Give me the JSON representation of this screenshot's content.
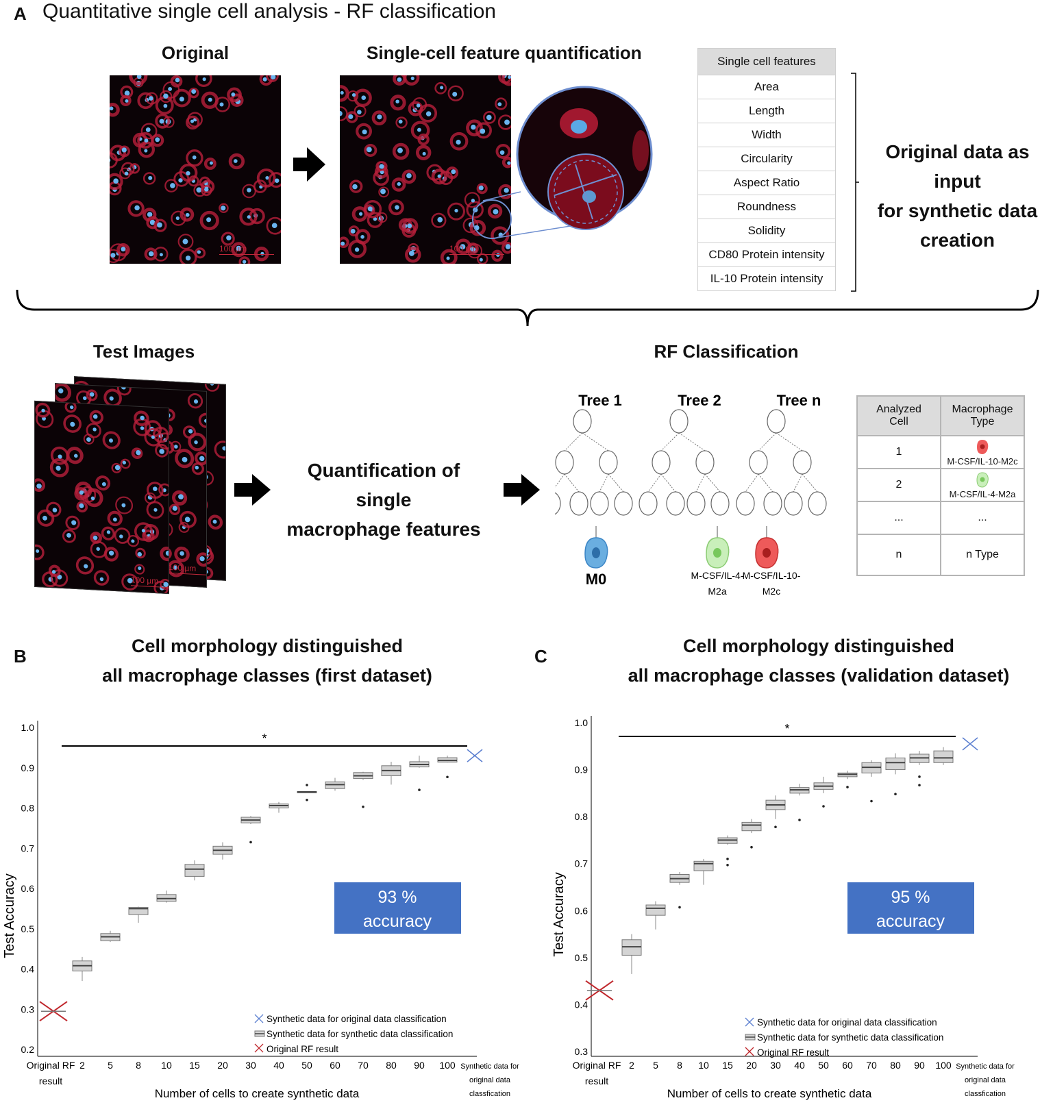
{
  "panelA": {
    "letter": "A",
    "title": "Quantitative single cell analysis - RF classification",
    "original_label": "Original",
    "quant_label": "Single-cell feature quantification",
    "scale_bar": "100 µm",
    "features_header": "Single cell features",
    "features": [
      "Area",
      "Length",
      "Width",
      "Circularity",
      "Aspect Ratio",
      "Roundness",
      "Solidity",
      "CD80 Protein intensity",
      "IL-10 Protein intensity"
    ],
    "input_note_lines": [
      "Original data as input",
      "for synthetic data",
      "creation"
    ],
    "test_images_label": "Test Images",
    "quant_macro_lines": [
      "Quantification of single",
      "macrophage features"
    ],
    "rf_label": "RF Classification",
    "trees": [
      "Tree 1",
      "Tree 2",
      "Tree n"
    ],
    "leaf_labels": {
      "m0": "M0",
      "m2a_1": "M-CSF/IL-4-",
      "m2a_2": "M2a",
      "m2c_1": "M-CSF/IL-10-",
      "m2c_2": "M2c"
    },
    "rf_table": {
      "headers": [
        [
          "Analyzed",
          "Cell"
        ],
        [
          "Macrophage",
          "Type"
        ]
      ],
      "rows": [
        {
          "cell": "1",
          "type": "M-CSF/IL-10-M2c"
        },
        {
          "cell": "2",
          "type": "M-CSF/IL-4-M2a"
        },
        {
          "cell": "...",
          "type": "..."
        },
        {
          "cell": "n",
          "type": "n Type"
        }
      ]
    },
    "colors": {
      "m0": "#6aaee0",
      "m2a": "#b9e6a7",
      "m2c": "#ee5a5a",
      "arrow": "#000000",
      "circle": "#6f8fd0"
    }
  },
  "panelB": {
    "letter": "B",
    "title_lines": [
      "Cell morphology distinguished",
      "all macrophage classes (first dataset)"
    ],
    "accuracy_lines": [
      "93 %",
      "accuracy"
    ]
  },
  "panelC": {
    "letter": "C",
    "title_lines": [
      "Cell morphology distinguished",
      "all macrophage classes (validation dataset)"
    ],
    "accuracy_lines": [
      "95 %",
      "accuracy"
    ]
  },
  "chart_data": [
    {
      "type": "box",
      "ylabel": "Test Accuracy",
      "xlabel": "Number of cells to create synthetic data",
      "ylim": [
        0.2,
        1.0
      ],
      "yticks": [
        "0.2",
        "0.3",
        "0.4",
        "0.5",
        "0.6",
        "0.7",
        "0.8",
        "0.9",
        "1.0"
      ],
      "original_rf": {
        "label_lines": [
          "Original RF",
          "result"
        ],
        "value": 0.295
      },
      "synthetic_original": {
        "label_lines": [
          "Synthetic data for",
          "original data",
          "classfication"
        ],
        "value": 0.93
      },
      "categories": [
        "2",
        "5",
        "8",
        "10",
        "15",
        "20",
        "30",
        "40",
        "50",
        "60",
        "70",
        "80",
        "90",
        "100"
      ],
      "boxes": [
        {
          "min": 0.37,
          "q1": 0.395,
          "median": 0.408,
          "q3": 0.42,
          "max": 0.43,
          "outliers": []
        },
        {
          "min": 0.467,
          "q1": 0.47,
          "median": 0.48,
          "q3": 0.488,
          "max": 0.495,
          "outliers": []
        },
        {
          "min": 0.515,
          "q1": 0.535,
          "median": 0.55,
          "q3": 0.553,
          "max": 0.555,
          "outliers": []
        },
        {
          "min": 0.565,
          "q1": 0.568,
          "median": 0.575,
          "q3": 0.585,
          "max": 0.595,
          "outliers": []
        },
        {
          "min": 0.62,
          "q1": 0.63,
          "median": 0.648,
          "q3": 0.66,
          "max": 0.67,
          "outliers": []
        },
        {
          "min": 0.672,
          "q1": 0.685,
          "median": 0.695,
          "q3": 0.705,
          "max": 0.715,
          "outliers": []
        },
        {
          "min": 0.76,
          "q1": 0.763,
          "median": 0.77,
          "q3": 0.777,
          "max": 0.78,
          "outliers": [
            0.715
          ]
        },
        {
          "min": 0.788,
          "q1": 0.8,
          "median": 0.806,
          "q3": 0.81,
          "max": 0.815,
          "outliers": []
        },
        {
          "min": 0.839,
          "q1": 0.839,
          "median": 0.84,
          "q3": 0.841,
          "max": 0.841,
          "outliers": [
            0.857,
            0.82
          ]
        },
        {
          "min": 0.843,
          "q1": 0.848,
          "median": 0.858,
          "q3": 0.865,
          "max": 0.875,
          "outliers": []
        },
        {
          "min": 0.87,
          "q1": 0.873,
          "median": 0.88,
          "q3": 0.888,
          "max": 0.89,
          "outliers": [
            0.803
          ]
        },
        {
          "min": 0.858,
          "q1": 0.88,
          "median": 0.893,
          "q3": 0.905,
          "max": 0.915,
          "outliers": []
        },
        {
          "min": 0.9,
          "q1": 0.902,
          "median": 0.908,
          "q3": 0.915,
          "max": 0.93,
          "outliers": [
            0.845
          ]
        },
        {
          "min": 0.913,
          "q1": 0.914,
          "median": 0.918,
          "q3": 0.925,
          "max": 0.93,
          "outliers": [
            0.877
          ]
        }
      ],
      "significance": "*",
      "legend": [
        "Synthetic data for original data classification",
        "Synthetic data for synthetic data classification",
        "Original RF result"
      ]
    },
    {
      "type": "box",
      "ylabel": "Test Accuracy",
      "xlabel": "Number of cells to create synthetic data",
      "ylim": [
        0.3,
        1.0
      ],
      "yticks": [
        "0.3",
        "0.4",
        "0.5",
        "0.6",
        "0.7",
        "0.8",
        "0.9",
        "1.0"
      ],
      "original_rf": {
        "label_lines": [
          "Original RF",
          "result"
        ],
        "value": 0.43
      },
      "synthetic_original": {
        "label_lines": [
          "Synthetic data for",
          "original data",
          "classfication"
        ],
        "value": 0.955
      },
      "categories": [
        "2",
        "5",
        "8",
        "10",
        "15",
        "20",
        "30",
        "40",
        "50",
        "60",
        "70",
        "80",
        "90",
        "100"
      ],
      "boxes": [
        {
          "min": 0.465,
          "q1": 0.505,
          "median": 0.523,
          "q3": 0.538,
          "max": 0.55,
          "outliers": []
        },
        {
          "min": 0.56,
          "q1": 0.59,
          "median": 0.605,
          "q3": 0.612,
          "max": 0.62,
          "outliers": []
        },
        {
          "min": 0.655,
          "q1": 0.66,
          "median": 0.668,
          "q3": 0.677,
          "max": 0.682,
          "outliers": [
            0.607
          ]
        },
        {
          "min": 0.655,
          "q1": 0.685,
          "median": 0.7,
          "q3": 0.705,
          "max": 0.71,
          "outliers": []
        },
        {
          "min": 0.74,
          "q1": 0.743,
          "median": 0.75,
          "q3": 0.755,
          "max": 0.76,
          "outliers": [
            0.71,
            0.697
          ]
        },
        {
          "min": 0.765,
          "q1": 0.77,
          "median": 0.782,
          "q3": 0.788,
          "max": 0.795,
          "outliers": [
            0.735
          ]
        },
        {
          "min": 0.795,
          "q1": 0.815,
          "median": 0.825,
          "q3": 0.835,
          "max": 0.845,
          "outliers": [
            0.778
          ]
        },
        {
          "min": 0.845,
          "q1": 0.85,
          "median": 0.857,
          "q3": 0.862,
          "max": 0.87,
          "outliers": [
            0.793
          ]
        },
        {
          "min": 0.85,
          "q1": 0.858,
          "median": 0.865,
          "q3": 0.872,
          "max": 0.885,
          "outliers": [
            0.822
          ]
        },
        {
          "min": 0.88,
          "q1": 0.885,
          "median": 0.89,
          "q3": 0.893,
          "max": 0.898,
          "outliers": [
            0.863
          ]
        },
        {
          "min": 0.885,
          "q1": 0.893,
          "median": 0.905,
          "q3": 0.915,
          "max": 0.92,
          "outliers": [
            0.833
          ]
        },
        {
          "min": 0.89,
          "q1": 0.9,
          "median": 0.915,
          "q3": 0.925,
          "max": 0.935,
          "outliers": [
            0.848
          ]
        },
        {
          "min": 0.91,
          "q1": 0.915,
          "median": 0.925,
          "q3": 0.933,
          "max": 0.94,
          "outliers": [
            0.885,
            0.867
          ]
        },
        {
          "min": 0.91,
          "q1": 0.915,
          "median": 0.925,
          "q3": 0.94,
          "max": 0.948,
          "outliers": []
        }
      ],
      "significance": "*",
      "legend": [
        "Synthetic data for original data classification",
        "Synthetic data for synthetic data classification",
        "Original RF result"
      ]
    }
  ]
}
